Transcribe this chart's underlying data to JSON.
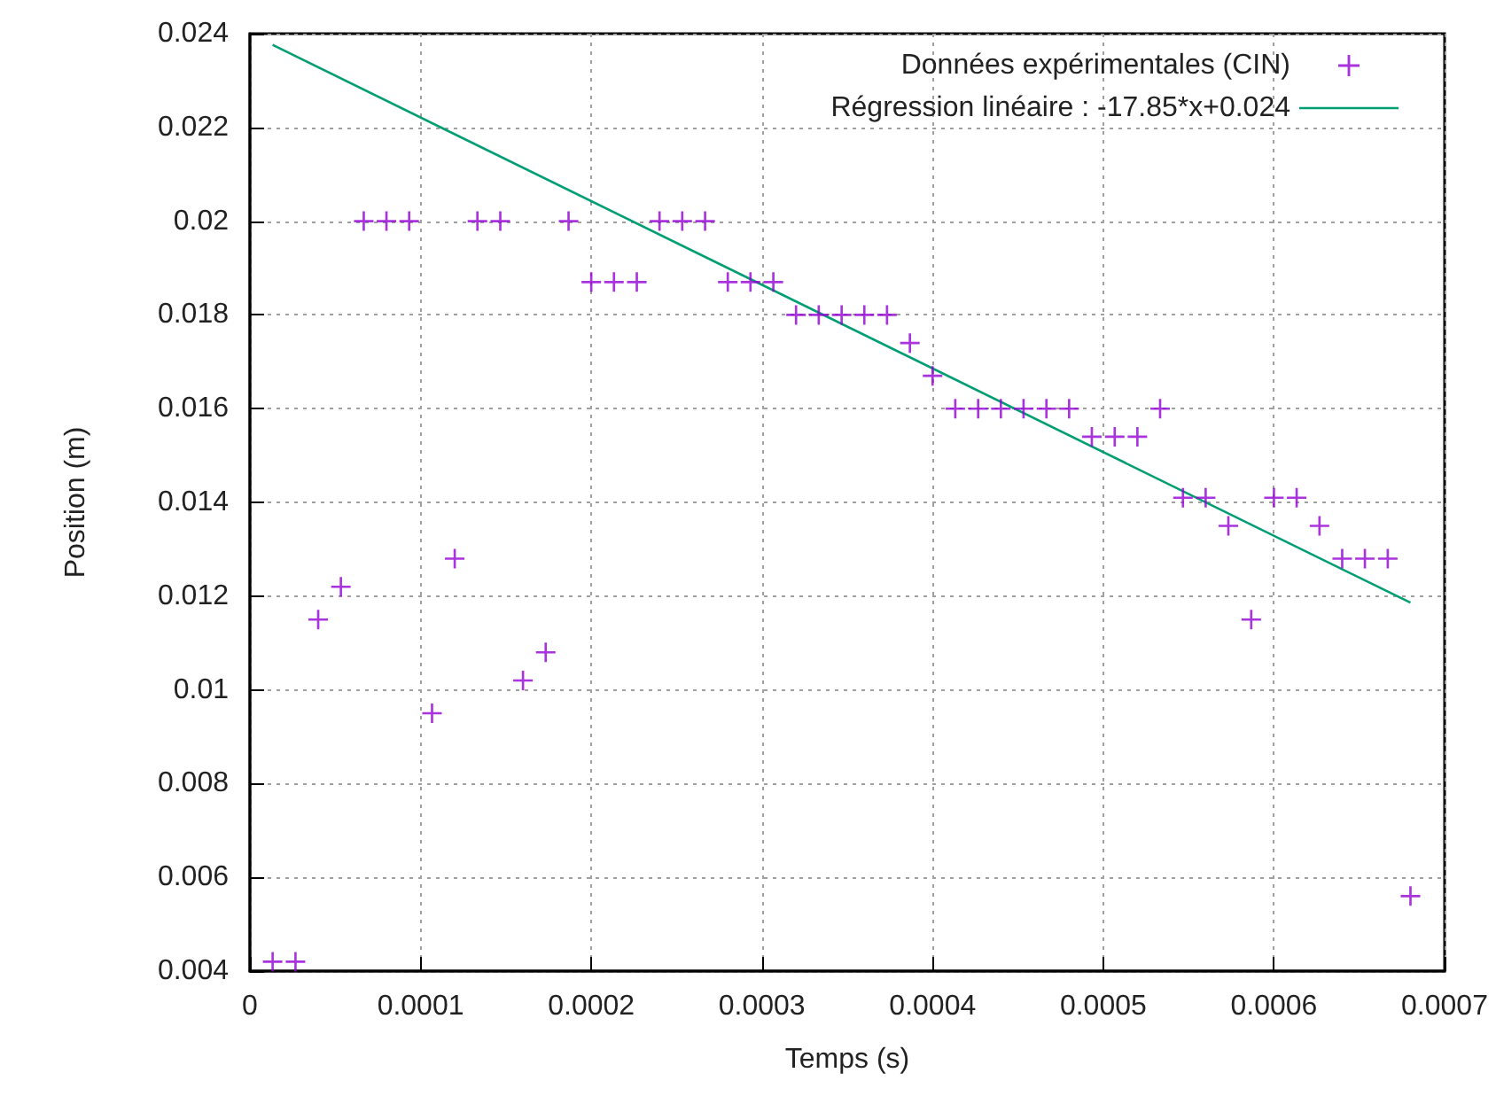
{
  "chart_data": {
    "type": "scatter",
    "xlabel": "Temps (s)",
    "ylabel": "Position (m)",
    "xlim": [
      0,
      0.0007
    ],
    "xticks": [
      0,
      0.0001,
      0.0002,
      0.0003,
      0.0004,
      0.0005,
      0.0006,
      0.0007
    ],
    "ylim": [
      0.004,
      0.024
    ],
    "yticks": [
      0.004,
      0.006,
      0.008,
      0.01,
      0.012,
      0.014,
      0.016,
      0.018,
      0.02,
      0.022,
      0.024
    ],
    "grid": true,
    "legend": "top right",
    "marker": "cross",
    "series": [
      {
        "name": "Données expérimentales (CIN)",
        "color": "#9400d3",
        "x": [
          1.33e-05,
          2.67e-05,
          4e-05,
          5.33e-05,
          6.67e-05,
          8e-05,
          9.33e-05,
          0.0001067,
          0.00012,
          0.0001333,
          0.0001467,
          0.00016,
          0.0001733,
          0.0001867,
          0.0002,
          0.0002133,
          0.0002267,
          0.00024,
          0.0002533,
          0.0002667,
          0.00028,
          0.0002933,
          0.0003067,
          0.00032,
          0.0003333,
          0.0003467,
          0.00036,
          0.0003733,
          0.0003867,
          0.0004,
          0.0004133,
          0.0004267,
          0.00044,
          0.0004533,
          0.0004667,
          0.00048,
          0.0004933,
          0.0005067,
          0.00052,
          0.0005333,
          0.0005467,
          0.00056,
          0.0005733,
          0.0005867,
          0.0006,
          0.0006133,
          0.0006267,
          0.00064,
          0.0006533,
          0.0006667,
          0.00068
        ],
        "values": [
          0.0042,
          0.0042,
          0.0115,
          0.0122,
          0.02,
          0.02,
          0.02,
          0.0095,
          0.0128,
          0.02,
          0.02,
          0.0102,
          0.0108,
          0.02,
          0.0187,
          0.0187,
          0.0187,
          0.02,
          0.02,
          0.02,
          0.0187,
          0.0187,
          0.0187,
          0.018,
          0.018,
          0.018,
          0.018,
          0.018,
          0.0174,
          0.0167,
          0.016,
          0.016,
          0.016,
          0.016,
          0.016,
          0.016,
          0.0154,
          0.0154,
          0.0154,
          0.016,
          0.0141,
          0.0141,
          0.0135,
          0.0115,
          0.0141,
          0.0141,
          0.0135,
          0.0128,
          0.0128,
          0.0128,
          0.0056
        ]
      },
      {
        "name": "Régression linéaire : -17.85*x+0.024",
        "color": "#009e73",
        "type": "line",
        "marker": "none",
        "x": [
          1.33e-05,
          0.00068
        ],
        "values": [
          0.02376,
          0.01186
        ]
      }
    ]
  }
}
